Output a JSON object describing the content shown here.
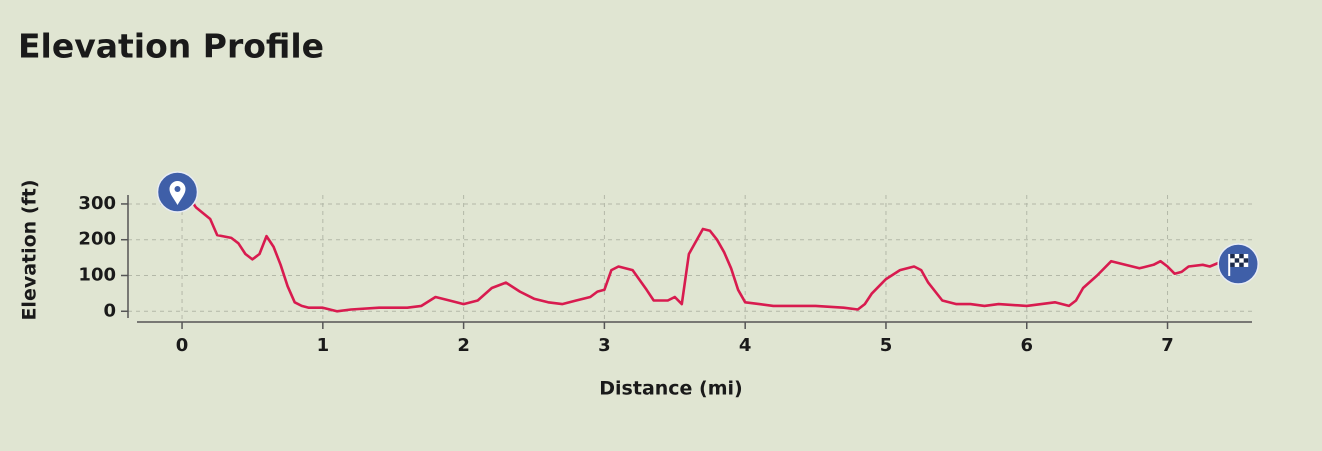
{
  "chart_data": {
    "type": "line",
    "title": "Elevation Profile",
    "x_label": "Distance (mi)",
    "y_label": "Elevation (ft)",
    "xlim": [
      -0.32,
      7.6
    ],
    "ylim": [
      -30,
      325
    ],
    "xticks": [
      0,
      1,
      2,
      3,
      4,
      5,
      6,
      7
    ],
    "yticks": [
      0,
      100,
      200,
      300
    ],
    "grid": true,
    "series": [
      {
        "name": "Elevation",
        "color": "#d81b4f",
        "x": [
          0.06,
          0.1,
          0.2,
          0.25,
          0.35,
          0.4,
          0.45,
          0.5,
          0.55,
          0.6,
          0.65,
          0.7,
          0.75,
          0.8,
          0.85,
          0.9,
          1.0,
          1.1,
          1.2,
          1.4,
          1.6,
          1.7,
          1.8,
          1.9,
          2.0,
          2.1,
          2.2,
          2.3,
          2.4,
          2.5,
          2.6,
          2.7,
          2.8,
          2.9,
          2.95,
          3.0,
          3.05,
          3.1,
          3.2,
          3.3,
          3.35,
          3.45,
          3.5,
          3.55,
          3.6,
          3.65,
          3.7,
          3.75,
          3.8,
          3.85,
          3.9,
          3.95,
          4.0,
          4.1,
          4.2,
          4.5,
          4.7,
          4.8,
          4.85,
          4.9,
          5.0,
          5.1,
          5.2,
          5.25,
          5.3,
          5.4,
          5.5,
          5.6,
          5.7,
          5.8,
          6.0,
          6.2,
          6.3,
          6.35,
          6.4,
          6.5,
          6.6,
          6.7,
          6.8,
          6.9,
          6.95,
          7.0,
          7.05,
          7.1,
          7.15,
          7.25,
          7.3,
          7.36
        ],
        "values": [
          311,
          290,
          258,
          213,
          205,
          190,
          160,
          145,
          160,
          210,
          180,
          130,
          70,
          25,
          15,
          10,
          10,
          0,
          5,
          10,
          10,
          15,
          40,
          30,
          20,
          30,
          65,
          80,
          55,
          35,
          25,
          20,
          30,
          40,
          55,
          60,
          115,
          125,
          115,
          60,
          30,
          30,
          40,
          20,
          160,
          195,
          230,
          225,
          200,
          165,
          120,
          60,
          25,
          20,
          15,
          15,
          10,
          5,
          20,
          50,
          90,
          115,
          125,
          115,
          80,
          30,
          20,
          20,
          15,
          20,
          15,
          25,
          15,
          30,
          65,
          100,
          140,
          130,
          120,
          130,
          140,
          125,
          105,
          110,
          125,
          130,
          125,
          135
        ]
      }
    ]
  }
}
